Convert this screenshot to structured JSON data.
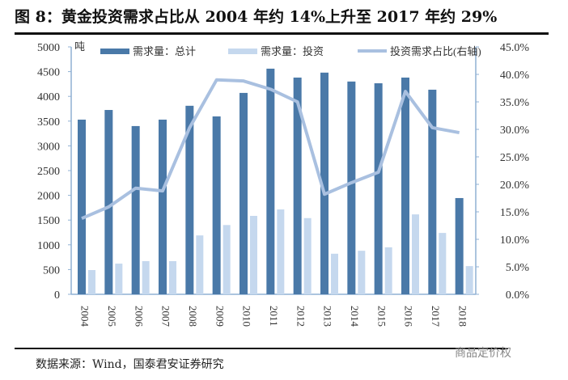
{
  "title": "图 8：黄金投资需求占比从 2004 年约 14%上升至 2017 年约 29%",
  "source": "数据来源：Wind，国泰君安证券研究",
  "watermark": "商品定价权",
  "chart_data": {
    "type": "bar+line",
    "title": "",
    "y_unit": "吨",
    "ylim": [
      0,
      5000
    ],
    "y_ticks": [
      "0",
      "500",
      "1000",
      "1500",
      "2000",
      "2500",
      "3000",
      "3500",
      "4000",
      "4500",
      "5000"
    ],
    "y2lim": [
      0,
      45
    ],
    "y2_ticks": [
      "0.0%",
      "5.0%",
      "10.0%",
      "15.0%",
      "20.0%",
      "25.0%",
      "30.0%",
      "35.0%",
      "40.0%",
      "45.0%"
    ],
    "categories": [
      "2004",
      "2005",
      "2006",
      "2007",
      "2008",
      "2009",
      "2010",
      "2011",
      "2012",
      "2013",
      "2014",
      "2015",
      "2016",
      "2017",
      "2018"
    ],
    "legend_position": "top",
    "series": [
      {
        "name": "需求量：总计",
        "type": "bar",
        "axis": "left",
        "color": "#4a79a8",
        "values": [
          3530,
          3725,
          3400,
          3530,
          3810,
          3595,
          4070,
          4560,
          4380,
          4480,
          4300,
          4265,
          4380,
          4135,
          1945
        ]
      },
      {
        "name": "需求量：投资",
        "type": "bar",
        "axis": "left",
        "color": "#c5d8ee",
        "values": [
          490,
          620,
          670,
          670,
          1190,
          1400,
          1585,
          1715,
          1540,
          820,
          880,
          950,
          1615,
          1240,
          570
        ]
      },
      {
        "name": "投资需求占比(右轴)",
        "type": "line",
        "axis": "right",
        "color": "#a9c0e0",
        "values": [
          13.8,
          15.9,
          19.3,
          18.8,
          30.3,
          39.0,
          38.8,
          37.3,
          35.0,
          18.2,
          20.3,
          22.2,
          36.9,
          30.3,
          29.4
        ]
      }
    ]
  }
}
